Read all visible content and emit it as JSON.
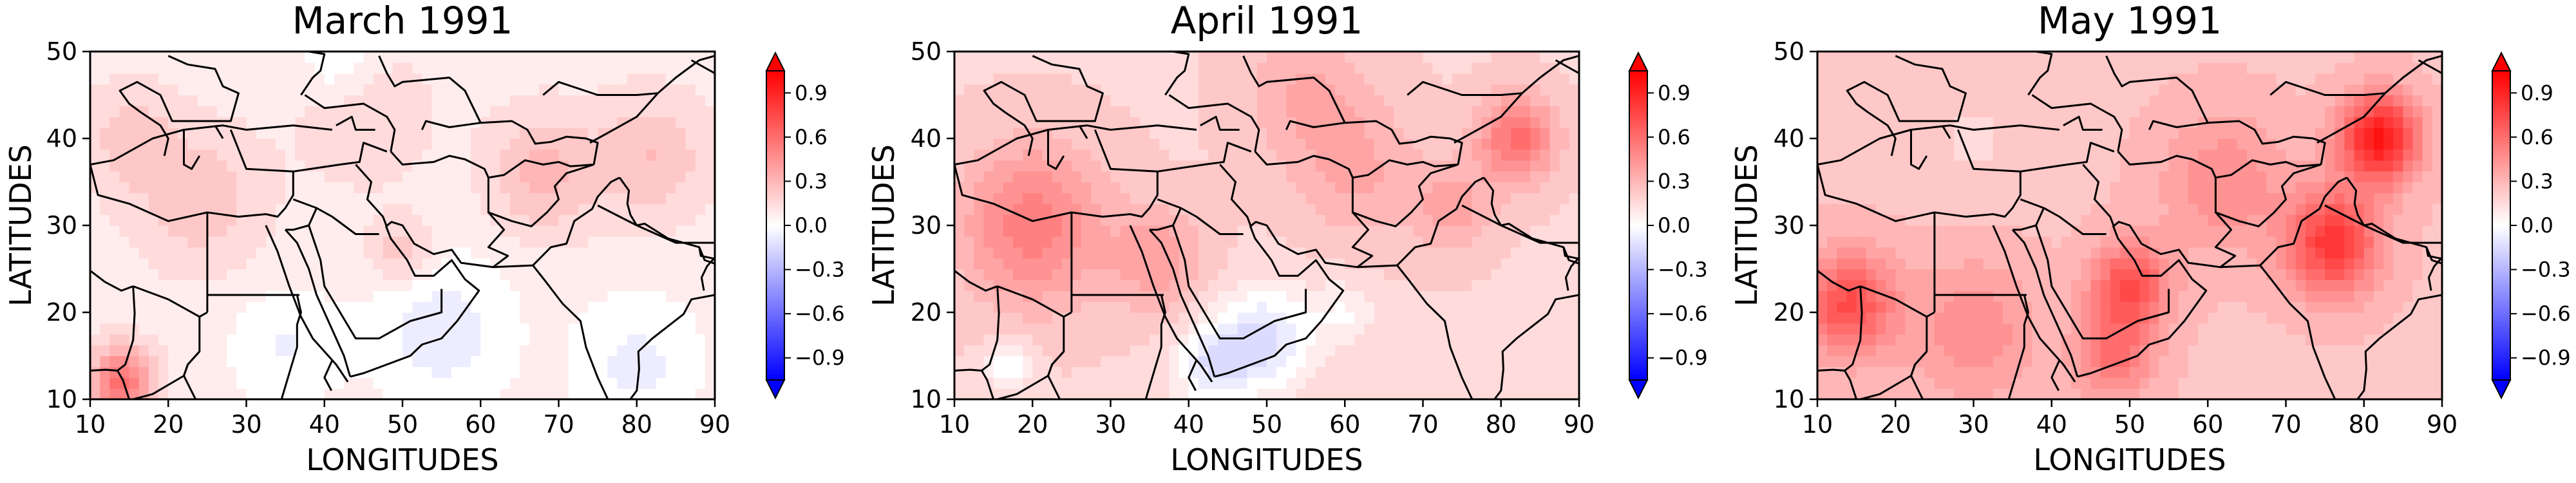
{
  "chart_data": [
    {
      "type": "heatmap",
      "title": "March 1991",
      "xlabel": "LONGITUDES",
      "ylabel": "LATITUDES",
      "xlim": [
        10,
        90
      ],
      "ylim": [
        10,
        50
      ],
      "xticks": [
        10,
        20,
        30,
        40,
        50,
        60,
        70,
        80,
        90
      ],
      "yticks": [
        10,
        20,
        30,
        40,
        50
      ],
      "colorbar": {
        "min": -1.05,
        "max": 1.05,
        "ticks": [
          "0.9",
          "0.6",
          "0.3",
          "0.0",
          "−0.3",
          "−0.6",
          "−0.9"
        ],
        "extend": "both"
      },
      "background_value": 0.08,
      "blobs": [
        {
          "lon": 14,
          "lat": 12,
          "value": 0.55,
          "r": 4
        },
        {
          "lon": 24,
          "lat": 33,
          "value": 0.2,
          "r": 8
        },
        {
          "lon": 50,
          "lat": 27,
          "value": 0.22,
          "r": 4
        },
        {
          "lon": 68,
          "lat": 36,
          "value": 0.25,
          "r": 7
        },
        {
          "lon": 82,
          "lat": 38,
          "value": 0.22,
          "r": 7
        },
        {
          "lon": 45,
          "lat": 43,
          "value": 0.15,
          "r": 8
        },
        {
          "lon": 15,
          "lat": 40,
          "value": 0.18,
          "r": 6
        },
        {
          "lon": 55,
          "lat": 18,
          "value": -0.12,
          "r": 9
        },
        {
          "lon": 80,
          "lat": 14,
          "value": -0.1,
          "r": 8
        },
        {
          "lon": 35,
          "lat": 16,
          "value": -0.08,
          "r": 7
        },
        {
          "lon": 42,
          "lat": 49,
          "value": -0.1,
          "r": 5
        }
      ]
    },
    {
      "type": "heatmap",
      "title": "April 1991",
      "xlabel": "LONGITUDES",
      "ylabel": "LATITUDES",
      "xlim": [
        10,
        90
      ],
      "ylim": [
        10,
        50
      ],
      "xticks": [
        10,
        20,
        30,
        40,
        50,
        60,
        70,
        80,
        90
      ],
      "yticks": [
        10,
        20,
        30,
        40,
        50
      ],
      "colorbar": {
        "min": -1.05,
        "max": 1.05,
        "ticks": [
          "0.9",
          "0.6",
          "0.3",
          "0.0",
          "−0.3",
          "−0.6",
          "−0.9"
        ],
        "extend": "both"
      },
      "background_value": 0.18,
      "blobs": [
        {
          "lon": 20,
          "lat": 30,
          "value": 0.45,
          "r": 9
        },
        {
          "lon": 36,
          "lat": 26,
          "value": 0.3,
          "r": 6
        },
        {
          "lon": 82,
          "lat": 40,
          "value": 0.5,
          "r": 5
        },
        {
          "lon": 62,
          "lat": 36,
          "value": 0.25,
          "r": 8
        },
        {
          "lon": 55,
          "lat": 45,
          "value": 0.25,
          "r": 8
        },
        {
          "lon": 74,
          "lat": 32,
          "value": 0.28,
          "r": 5
        },
        {
          "lon": 50,
          "lat": 17,
          "value": -0.22,
          "r": 6
        },
        {
          "lon": 43,
          "lat": 14,
          "value": -0.18,
          "r": 5
        },
        {
          "lon": 17,
          "lat": 14,
          "value": -0.12,
          "r": 3
        },
        {
          "lon": 60,
          "lat": 20,
          "value": -0.05,
          "r": 4
        }
      ]
    },
    {
      "type": "heatmap",
      "title": "May 1991",
      "xlabel": "LONGITUDES",
      "ylabel": "LATITUDES",
      "xlim": [
        10,
        90
      ],
      "ylim": [
        10,
        50
      ],
      "xticks": [
        10,
        20,
        30,
        40,
        50,
        60,
        70,
        80,
        90
      ],
      "yticks": [
        10,
        20,
        30,
        40,
        50
      ],
      "colorbar": {
        "min": -1.05,
        "max": 1.05,
        "ticks": [
          "0.9",
          "0.6",
          "0.3",
          "0.0",
          "−0.3",
          "−0.6",
          "−0.9"
        ],
        "extend": "both"
      },
      "background_value": 0.25,
      "blobs": [
        {
          "lon": 82,
          "lat": 40,
          "value": 0.85,
          "r": 5
        },
        {
          "lon": 76,
          "lat": 28,
          "value": 0.7,
          "r": 6
        },
        {
          "lon": 14,
          "lat": 21,
          "value": 0.6,
          "r": 6
        },
        {
          "lon": 50,
          "lat": 23,
          "value": 0.6,
          "r": 5
        },
        {
          "lon": 48,
          "lat": 15,
          "value": 0.45,
          "r": 5
        },
        {
          "lon": 30,
          "lat": 18,
          "value": 0.35,
          "r": 8
        },
        {
          "lon": 62,
          "lat": 35,
          "value": 0.35,
          "r": 8
        },
        {
          "lon": 30,
          "lat": 40,
          "value": 0.05,
          "r": 7
        }
      ]
    }
  ],
  "colors": {
    "positive": "#ff0000",
    "negative": "#0000ff",
    "neutral": "#ffffff",
    "axis": "#000000",
    "borders": "#000000"
  }
}
